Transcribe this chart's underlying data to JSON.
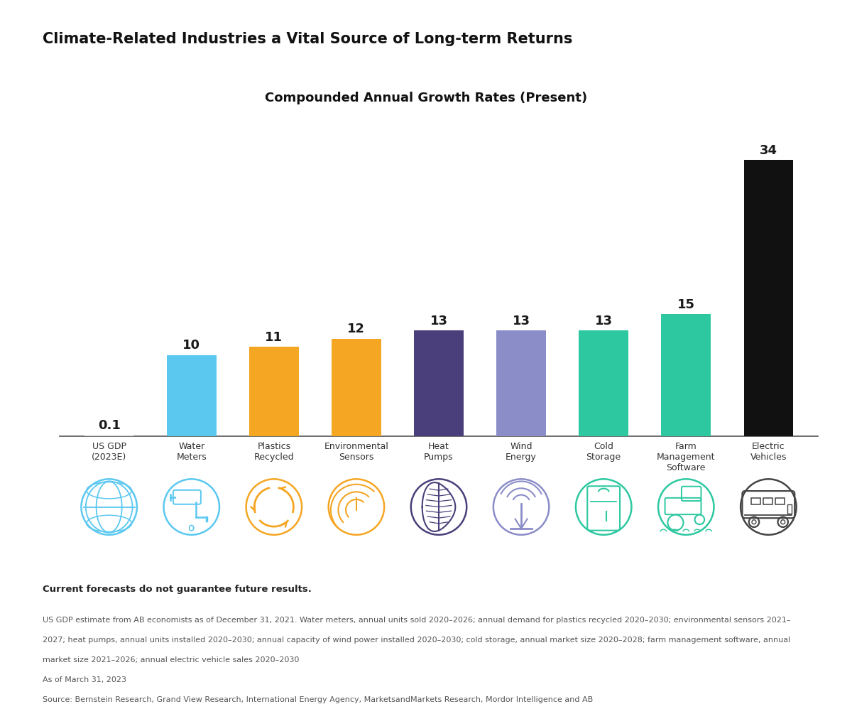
{
  "title": "Climate-Related Industries a Vital Source of Long-term Returns",
  "subtitle": "Compounded Annual Growth Rates (Present)",
  "categories": [
    "US GDP\n(2023E)",
    "Water\nMeters",
    "Plastics\nRecycled",
    "Environmental\nSensors",
    "Heat\nPumps",
    "Wind\nEnergy",
    "Cold\nStorage",
    "Farm\nManagement\nSoftware",
    "Electric\nVehicles"
  ],
  "values": [
    0.1,
    10,
    11,
    12,
    13,
    13,
    13,
    15,
    34
  ],
  "bar_colors": [
    "#C8C8C8",
    "#5BC8F0",
    "#F5A623",
    "#F5A623",
    "#4A3F7A",
    "#8B8DC8",
    "#2DC8A0",
    "#2DC8A0",
    "#111111"
  ],
  "ylim": [
    0,
    38
  ],
  "background_color": "#FFFFFF",
  "disclaimer": "Current forecasts do not guarantee future results.",
  "footnote1": "US GDP estimate from AB economists as of December 31, 2021. Water meters, annual units sold 2020–2026; annual demand for plastics recycled 2020–2030; environmental sensors 2021–",
  "footnote2": "2027; heat pumps, annual units installed 2020–2030; annual capacity of wind power installed 2020–2030; cold storage, annual market size 2020–2028; farm management software, annual",
  "footnote3": "market size 2021–2026; annual electric vehicle sales 2020–2030",
  "footnote4": "As of March 31, 2023",
  "footnote5": "Source: Bernstein Research, Grand View Research, International Energy Agency, MarketsandMarkets Research, Mordor Intelligence and AB",
  "icon_colors": [
    "#5BC8F0",
    "#5BC8F0",
    "#F5A623",
    "#F5A623",
    "#4A3F7A",
    "#8B8DC8",
    "#2DC8A0",
    "#2DC8A0",
    "#444444"
  ]
}
